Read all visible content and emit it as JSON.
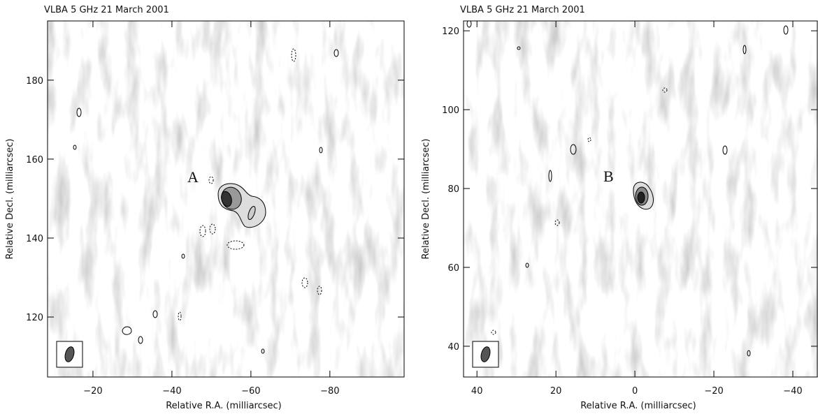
{
  "chart_data": [
    {
      "type": "contour",
      "title": "VLBA 5 GHz 21 March 2001",
      "x_label": "Relative R.A. (milliarcsec)",
      "y_label": "Relative Decl. (milliarcsec)",
      "annotation": "A",
      "xlim": [
        -8.5,
        -98.8
      ],
      "ylim": [
        104.8,
        195.0
      ],
      "xticks": [
        {
          "value": -20,
          "label": "−20"
        },
        {
          "value": -40,
          "label": "−40"
        },
        {
          "value": -60,
          "label": "−60"
        },
        {
          "value": -80,
          "label": "−80"
        }
      ],
      "yticks": [
        120,
        140,
        160,
        180
      ]
    },
    {
      "type": "contour",
      "title": "VLBA 5 GHz 21 March 2001",
      "x_label": "Relative R.A. (milliarcsec)",
      "y_label": "Relative Decl. (milliarcsec)",
      "annotation": "B",
      "xlim": [
        43.4,
        -46.2
      ],
      "ylim": [
        32.2,
        122.5
      ],
      "xticks": [
        40,
        20,
        0,
        {
          "value": -20,
          "label": "−20"
        },
        {
          "value": -40,
          "label": "−40"
        }
      ],
      "yticks": [
        40,
        60,
        80,
        100,
        120
      ]
    }
  ]
}
